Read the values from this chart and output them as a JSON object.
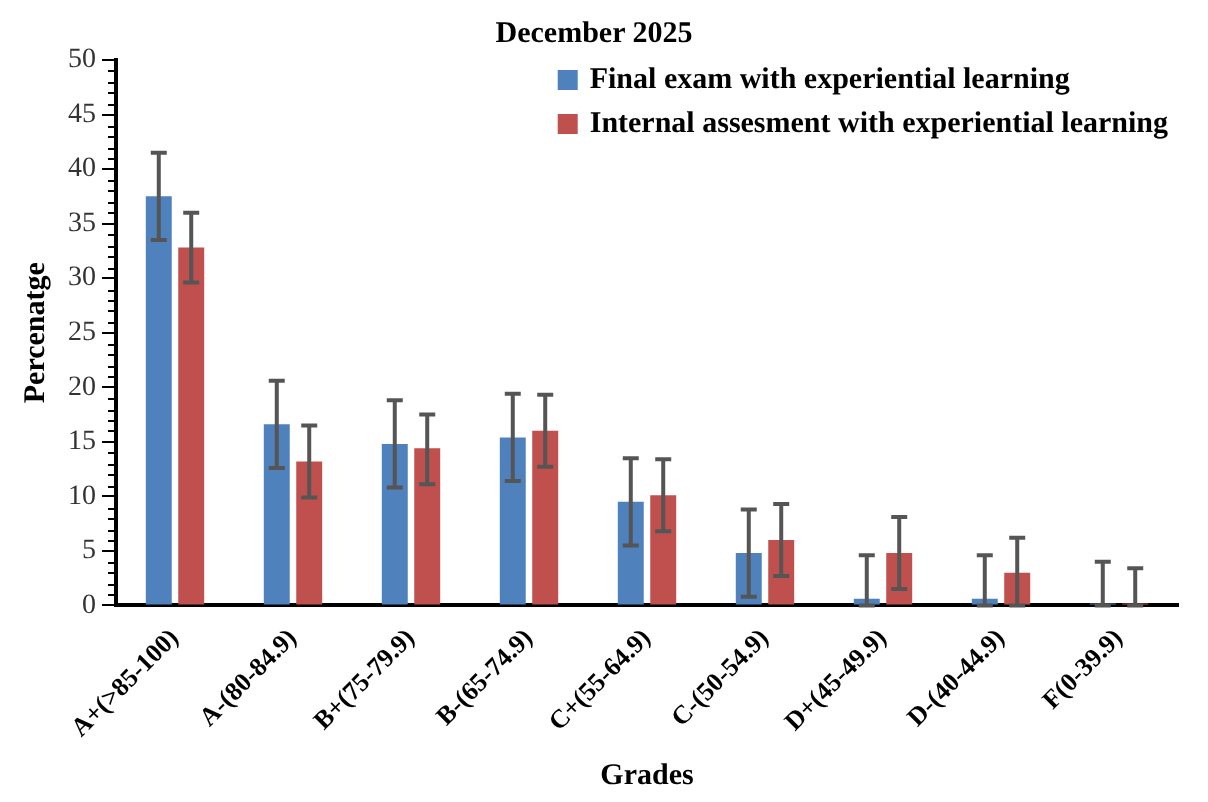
{
  "chart_data": {
    "type": "bar",
    "title": "December 2025",
    "xlabel": "Grades",
    "ylabel": "Percenatge",
    "categories": [
      "A+(>85-100)",
      "A-(80-84.9)",
      "B+(75-79.9)",
      "B-(65-74.9)",
      "C+(55-64.9)",
      "C-(50-54.9)",
      "D+(45-49.9)",
      "D-(40-44.9)",
      "F(0-39.9)"
    ],
    "series": [
      {
        "name": "Final exam with experiential learning",
        "color": "#4f81bd",
        "values": [
          37.5,
          16.6,
          14.8,
          15.4,
          9.5,
          4.8,
          0.6,
          0.6,
          0
        ],
        "errors": [
          [
            33.5,
            41.5
          ],
          [
            12.6,
            20.6
          ],
          [
            10.8,
            18.8
          ],
          [
            11.4,
            19.4
          ],
          [
            5.5,
            13.5
          ],
          [
            0.8,
            8.8
          ],
          [
            0,
            4.6
          ],
          [
            0,
            4.6
          ],
          [
            0,
            4
          ]
        ]
      },
      {
        "name": "Internal assesment with experiential learning",
        "color": "#c0504d",
        "values": [
          32.8,
          13.2,
          14.4,
          16,
          10.1,
          6,
          4.8,
          3,
          0
        ],
        "errors": [
          [
            29.6,
            36
          ],
          [
            9.9,
            16.5
          ],
          [
            11.1,
            17.5
          ],
          [
            12.7,
            19.3
          ],
          [
            6.8,
            13.4
          ],
          [
            2.7,
            9.3
          ],
          [
            1.5,
            8.1
          ],
          [
            0,
            6.2
          ],
          [
            0,
            3.4
          ]
        ]
      }
    ],
    "ylim": [
      0,
      50
    ],
    "yticks": [
      0,
      5,
      10,
      15,
      20,
      25,
      30,
      35,
      40,
      45,
      50
    ],
    "grid": false,
    "legend": "top right"
  }
}
